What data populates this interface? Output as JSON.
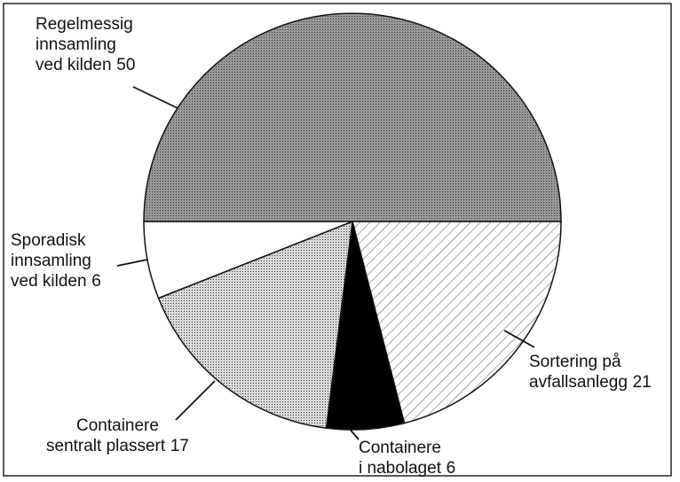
{
  "chart_data": {
    "type": "pie",
    "categories": [
      "Regelmessig\ninnsamling\nved kilden",
      "Sortering på\navfallsanlegg",
      "Containere\ni nabolaget",
      "Containere\nsentralt plassert",
      "Sporadisk\ninnsamling\nved kilden"
    ],
    "values": [
      50,
      21,
      6,
      17,
      6
    ],
    "colors": [
      "#9a9a9a",
      "#ffffff",
      "#000000",
      "#d9d9d9",
      "#ffffff"
    ],
    "patterns": [
      "stipple",
      "hatch",
      "none",
      "stipple",
      "none"
    ]
  }
}
